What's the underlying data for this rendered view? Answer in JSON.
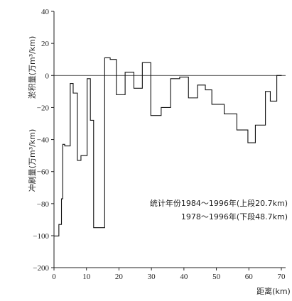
{
  "chart_data": {
    "type": "line",
    "step": true,
    "xlim": [
      0,
      70
    ],
    "ylim": [
      -200,
      40
    ],
    "x_ticks": [
      0,
      10,
      20,
      30,
      40,
      50,
      60,
      70
    ],
    "y_ticks": [
      40,
      20,
      0,
      -20,
      -40,
      -60,
      -80,
      -100,
      -200
    ],
    "y_axis_break": [
      -100,
      -200
    ],
    "xlabel": "距离(km)",
    "ylabel_upper": "淤积量(万m³/km)",
    "ylabel_lower": "冲刷量(万m³/km)",
    "annotation_lines": [
      "统计年份1984～1996年(上段20.7km)",
      "1978～1996年(下段48.7km)"
    ],
    "series": [
      {
        "x": [
          0,
          1.5,
          2.3,
          2.7,
          3.3,
          5.0,
          5.9,
          7.2,
          8.3,
          10.2,
          11.2,
          12.2,
          13.7,
          15.6,
          17.3,
          19.2,
          21.9,
          24.6,
          27.2,
          29.8,
          33.0,
          35.9,
          38.7,
          41.4,
          44.2,
          46.6,
          48.6,
          52.4,
          56.3,
          59.7,
          62.0,
          65.1,
          66.6,
          68.6,
          70.1
        ],
        "y": [
          -101,
          -93,
          -77,
          -43,
          -44,
          -5,
          -11,
          -53,
          -50,
          -2,
          -28,
          -95,
          -95,
          11,
          10,
          -12,
          2,
          -8,
          8,
          -25,
          -20,
          -2,
          -1,
          -14,
          -6,
          -9,
          -18,
          -24,
          -34,
          -42,
          -31,
          -10,
          -16,
          0,
          0
        ]
      }
    ]
  }
}
